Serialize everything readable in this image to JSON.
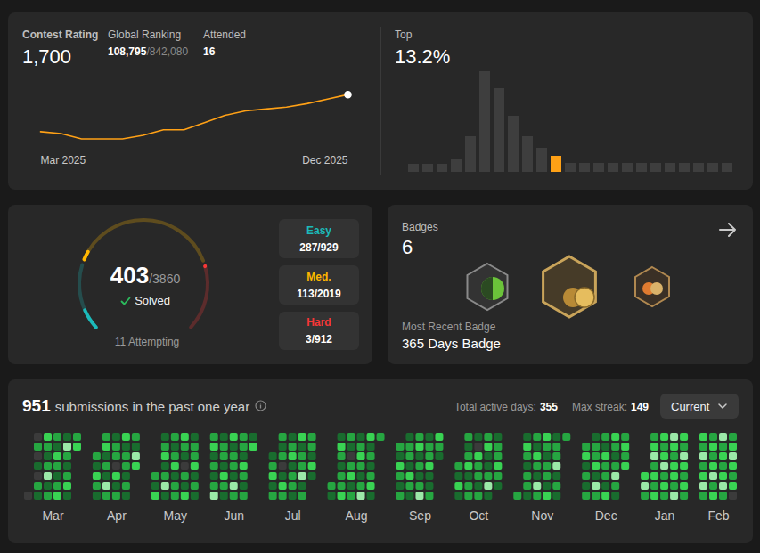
{
  "contest": {
    "rating_label": "Contest Rating",
    "rating": "1,700",
    "ranking_label": "Global Ranking",
    "ranking": "108,795",
    "ranking_total": "/842,080",
    "attended_label": "Attended",
    "attended": "16",
    "top_label": "Top",
    "top": "13.2%"
  },
  "problems": {
    "solved": 403,
    "total": 3860,
    "total_text": "/3860",
    "solved_label": "Solved",
    "attempting": "11 Attempting",
    "levels": [
      {
        "label": "Easy",
        "text": "287/929",
        "solved": 287,
        "total": 929,
        "color": "#1cbaba"
      },
      {
        "label": "Med.",
        "text": "113/2019",
        "solved": 113,
        "total": 2019,
        "color": "#ffb700"
      },
      {
        "label": "Hard",
        "text": "3/912",
        "solved": 3,
        "total": 912,
        "color": "#f63737"
      }
    ]
  },
  "badges": {
    "label": "Badges",
    "count": 6,
    "recent_label": "Most Recent Badge",
    "recent": "365 Days Badge"
  },
  "submissions": {
    "count": 951,
    "text": "submissions in the past one year",
    "active_label": "Total active days:",
    "active_days": 355,
    "streak_label": "Max streak:",
    "max_streak": 149,
    "period": "Current"
  },
  "chart_data": [
    {
      "type": "line",
      "categories": [
        "Mar 2025",
        null,
        null,
        null,
        null,
        null,
        null,
        null,
        null,
        null,
        null,
        null,
        null,
        null,
        null,
        "Dec 2025"
      ],
      "values": [
        1520,
        1511,
        1485,
        1485,
        1485,
        1502,
        1529,
        1529,
        1564,
        1599,
        1621,
        1630,
        1639,
        1656,
        1678,
        1700
      ],
      "color": "#ffa116",
      "ylim": [
        1470,
        1720
      ],
      "tick_labels": "x"
    },
    {
      "type": "bar",
      "categories": [
        null,
        null,
        null,
        null,
        null,
        null,
        null,
        null,
        null,
        null,
        null,
        null,
        null,
        null,
        null,
        null,
        null,
        null,
        null,
        null,
        null,
        null,
        null
      ],
      "values": [
        9,
        9,
        9,
        15,
        40,
        113,
        94,
        63,
        40,
        27,
        18,
        10,
        10,
        10,
        10,
        10,
        10,
        10,
        10,
        10,
        10,
        10,
        10
      ],
      "colors": [
        "#3e3e3e",
        "#3e3e3e",
        "#3e3e3e",
        "#3e3e3e",
        "#3e3e3e",
        "#3e3e3e",
        "#3e3e3e",
        "#3e3e3e",
        "#3e3e3e",
        "#3e3e3e",
        "#ffa116",
        "#3e3e3e",
        "#3e3e3e",
        "#3e3e3e",
        "#3e3e3e",
        "#3e3e3e",
        "#3e3e3e",
        "#3e3e3e",
        "#3e3e3e",
        "#3e3e3e",
        "#3e3e3e",
        "#3e3e3e",
        "#3e3e3e"
      ],
      "ylim": [
        0,
        120
      ],
      "tick_labels": false
    },
    {
      "type": "heatmap",
      "categories": [
        "Mar",
        "Apr",
        "May",
        "Jun",
        "Jul",
        "Aug",
        "Sep",
        "Oct",
        "Nov",
        "Dec",
        "Jan",
        "Feb"
      ],
      "cells": [
        [
          [
            null,
            null,
            null,
            null,
            null,
            null,
            0
          ],
          [
            0,
            2,
            0,
            1,
            0,
            2,
            1
          ],
          [
            3,
            2,
            1,
            2,
            4,
            1,
            2
          ],
          [
            2,
            1,
            3,
            2,
            1,
            2,
            3
          ],
          [
            1,
            4,
            2,
            1,
            2,
            3,
            1
          ],
          [
            2,
            3,
            null,
            null,
            null,
            null,
            null
          ]
        ],
        [
          [
            null,
            null,
            2,
            1,
            3,
            2,
            1
          ],
          [
            2,
            3,
            1,
            2,
            1,
            4,
            2
          ],
          [
            1,
            2,
            2,
            0,
            3,
            1,
            2
          ],
          [
            3,
            1,
            2,
            2,
            1,
            2,
            1
          ],
          [
            2,
            1,
            4,
            3,
            null,
            null,
            null
          ]
        ],
        [
          [
            null,
            null,
            null,
            null,
            2,
            1,
            3
          ],
          [
            1,
            2,
            3,
            1,
            2,
            4,
            1
          ],
          [
            2,
            1,
            2,
            3,
            1,
            2,
            2
          ],
          [
            3,
            2,
            1,
            0,
            2,
            1,
            3
          ],
          [
            1,
            2,
            2,
            3,
            1,
            2,
            1
          ]
        ],
        [
          [
            2,
            3,
            1,
            2,
            1,
            2,
            4
          ],
          [
            1,
            2,
            2,
            1,
            3,
            2,
            1
          ],
          [
            3,
            1,
            2,
            2,
            1,
            4,
            2
          ],
          [
            2,
            2,
            1,
            3,
            2,
            1,
            2
          ],
          [
            1,
            3,
            null,
            null,
            null,
            null,
            null
          ]
        ],
        [
          [
            null,
            null,
            1,
            2,
            3,
            1,
            2
          ],
          [
            2,
            1,
            2,
            0,
            1,
            3,
            2
          ],
          [
            1,
            2,
            3,
            1,
            2,
            2,
            1
          ],
          [
            3,
            1,
            2,
            2,
            4,
            1,
            2
          ],
          [
            2,
            2,
            1,
            3,
            1,
            null,
            null
          ]
        ],
        [
          [
            null,
            null,
            null,
            null,
            null,
            2,
            1
          ],
          [
            1,
            3,
            2,
            1,
            2,
            2,
            3
          ],
          [
            2,
            1,
            0,
            2,
            3,
            1,
            2
          ],
          [
            1,
            2,
            3,
            2,
            1,
            2,
            4
          ],
          [
            3,
            1,
            2,
            1,
            2,
            3,
            1
          ],
          [
            2,
            null,
            null,
            null,
            null,
            null,
            null
          ]
        ],
        [
          [
            null,
            2,
            1,
            3,
            2,
            1,
            2
          ],
          [
            1,
            2,
            2,
            1,
            3,
            2,
            1
          ],
          [
            2,
            3,
            1,
            2,
            1,
            2,
            4
          ],
          [
            1,
            2,
            2,
            3,
            1,
            1,
            2
          ],
          [
            3,
            2,
            1,
            null,
            null,
            null,
            null
          ]
        ],
        [
          [
            null,
            null,
            null,
            2,
            1,
            3,
            1
          ],
          [
            2,
            1,
            2,
            3,
            1,
            2,
            2
          ],
          [
            1,
            0,
            3,
            2,
            2,
            1,
            2
          ],
          [
            2,
            3,
            1,
            1,
            2,
            4,
            1
          ],
          [
            1,
            2,
            2,
            3,
            2,
            1,
            null
          ]
        ],
        [
          [
            null,
            null,
            null,
            null,
            null,
            null,
            2
          ],
          [
            1,
            3,
            2,
            1,
            2,
            2,
            1
          ],
          [
            2,
            1,
            3,
            2,
            1,
            4,
            2
          ],
          [
            3,
            2,
            1,
            2,
            2,
            1,
            3
          ],
          [
            1,
            2,
            2,
            4,
            1,
            2,
            1
          ],
          [
            2,
            null,
            null,
            null,
            null,
            null,
            null
          ]
        ],
        [
          [
            null,
            2,
            3,
            1,
            2,
            1,
            2
          ],
          [
            1,
            2,
            2,
            3,
            1,
            4,
            2
          ],
          [
            2,
            1,
            3,
            2,
            2,
            1,
            3
          ],
          [
            3,
            2,
            1,
            2,
            4,
            2,
            1
          ],
          [
            2,
            3,
            2,
            3,
            null,
            null,
            null
          ]
        ],
        [
          [
            null,
            null,
            null,
            null,
            3,
            4,
            2
          ],
          [
            2,
            3,
            4,
            2,
            3,
            2,
            3
          ],
          [
            3,
            2,
            3,
            4,
            2,
            3,
            2
          ],
          [
            4,
            3,
            2,
            3,
            3,
            2,
            4
          ],
          [
            3,
            2,
            4,
            3,
            2,
            3,
            2
          ]
        ],
        [
          [
            3,
            2,
            4,
            2,
            3,
            4,
            2
          ],
          [
            2,
            3,
            2,
            3,
            4,
            2,
            3
          ],
          [
            4,
            2,
            3,
            2,
            3,
            4,
            2
          ],
          [
            2,
            3,
            4,
            3,
            2,
            3,
            0
          ]
        ]
      ]
    }
  ]
}
